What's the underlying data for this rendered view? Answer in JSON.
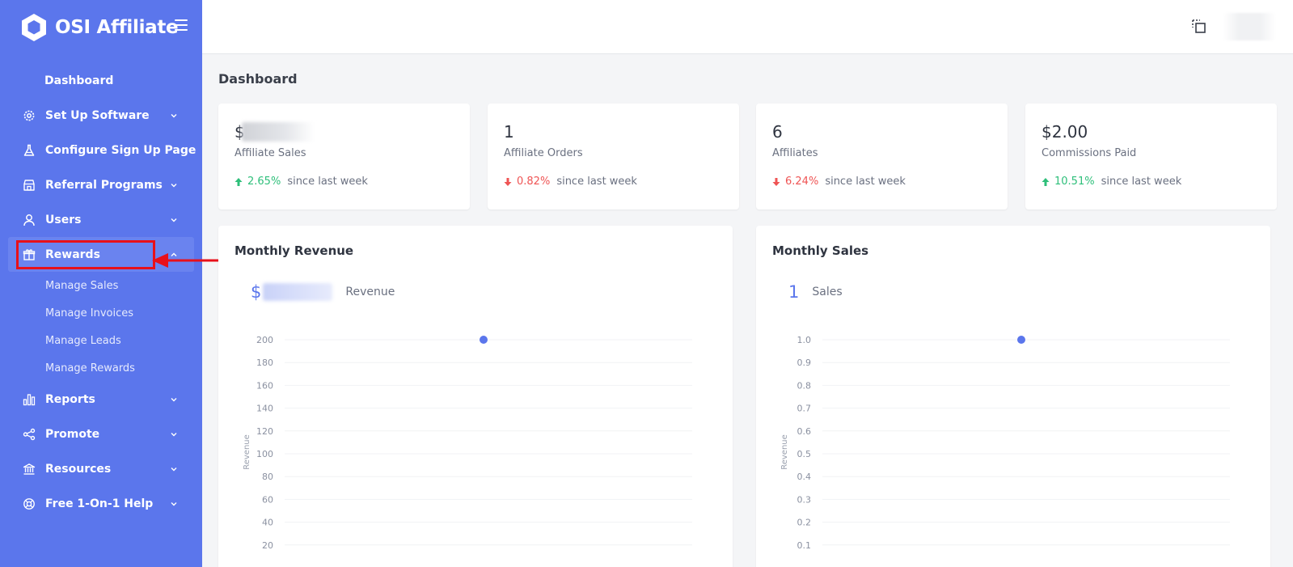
{
  "brand": {
    "name": "OSI Affiliate"
  },
  "sidebar": {
    "items": [
      {
        "key": "dashboard",
        "label": "Dashboard"
      },
      {
        "key": "setup",
        "label": "Set Up Software",
        "icon": "gear-icon"
      },
      {
        "key": "signup",
        "label": "Configure Sign Up Page",
        "icon": "flask-icon"
      },
      {
        "key": "referral",
        "label": "Referral Programs",
        "icon": "store-icon"
      },
      {
        "key": "users",
        "label": "Users",
        "icon": "user-icon"
      },
      {
        "key": "rewards",
        "label": "Rewards",
        "icon": "gift-icon"
      },
      {
        "key": "reports",
        "label": "Reports",
        "icon": "bar-chart-icon"
      },
      {
        "key": "promote",
        "label": "Promote",
        "icon": "share-icon"
      },
      {
        "key": "resources",
        "label": "Resources",
        "icon": "bank-icon"
      },
      {
        "key": "help",
        "label": "Free 1-On-1 Help",
        "icon": "lifebuoy-icon"
      }
    ],
    "rewards_sub": [
      "Manage Sales",
      "Manage Invoices",
      "Manage Leads",
      "Manage Rewards"
    ]
  },
  "page": {
    "title": "Dashboard"
  },
  "stats": [
    {
      "value": "$",
      "label": "Affiliate Sales",
      "trend": "up",
      "pct": "2.65%",
      "since": "since last week"
    },
    {
      "value": "1",
      "label": "Affiliate Orders",
      "trend": "down",
      "pct": "0.82%",
      "since": "since last week"
    },
    {
      "value": "6",
      "label": "Affiliates",
      "trend": "down",
      "pct": "6.24%",
      "since": "since last week"
    },
    {
      "value": "$2.00",
      "label": "Commissions Paid",
      "trend": "up",
      "pct": "10.51%",
      "since": "since last week"
    }
  ],
  "colors": {
    "accent": "#5b76ec",
    "up": "#2ebf7a",
    "down": "#ef5454",
    "annotation": "#e8101a"
  },
  "chart_data": [
    {
      "type": "scatter",
      "title": "Monthly Revenue",
      "summary_value": "$",
      "summary_label": "Revenue",
      "ylabel": "Revenue",
      "yticks": [
        20,
        40,
        60,
        80,
        100,
        120,
        140,
        160,
        180,
        200
      ],
      "ylim": [
        0,
        200
      ],
      "points": [
        {
          "x": 0.5,
          "y": 200
        }
      ],
      "grid": true
    },
    {
      "type": "scatter",
      "title": "Monthly Sales",
      "summary_value": "1",
      "summary_label": "Sales",
      "ylabel": "Revenue",
      "yticks": [
        "0.1",
        "0.2",
        "0.3",
        "0.4",
        "0.5",
        "0.6",
        "0.7",
        "0.8",
        "0.9",
        "1.0"
      ],
      "ylim": [
        0,
        1
      ],
      "points": [
        {
          "x": 0.5,
          "y": 1.0
        }
      ],
      "grid": true
    }
  ]
}
